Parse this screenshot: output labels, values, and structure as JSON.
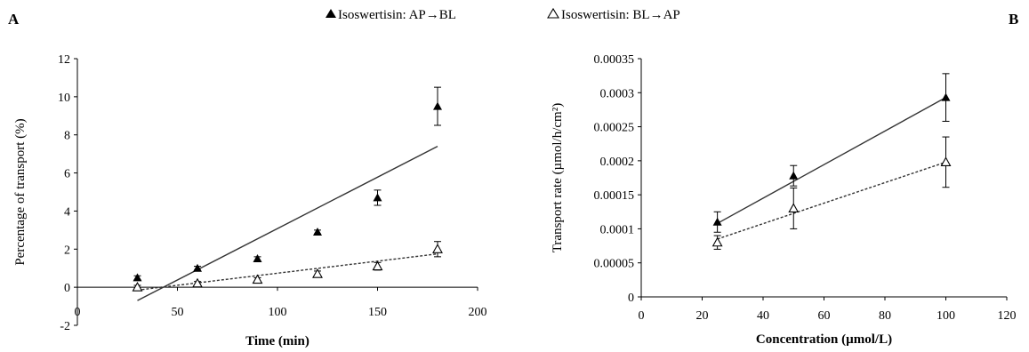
{
  "legend": {
    "series1_label": "Isoswertisin: AP→BL",
    "series2_label": "Isoswertisin: BL→AP"
  },
  "chart_data": [
    {
      "panel": "A",
      "type": "scatter",
      "xlabel": "Time  (min)",
      "ylabel": "Percentage of transport (%)",
      "xlim": [
        0,
        200
      ],
      "ylim": [
        -2,
        12
      ],
      "xticks": [
        "0",
        "50",
        "100",
        "150",
        "200"
      ],
      "yticks": [
        "-2",
        "0",
        "2",
        "4",
        "6",
        "8",
        "10",
        "12"
      ],
      "series": [
        {
          "name": "Isoswertisin: AP→BL",
          "marker": "filled-triangle",
          "x": [
            30,
            60,
            90,
            120,
            150,
            180
          ],
          "y": [
            0.5,
            1.0,
            1.5,
            2.9,
            4.7,
            9.5
          ],
          "err": [
            0.1,
            0.1,
            0.1,
            0.1,
            0.4,
            1.0
          ],
          "trendline": {
            "style": "solid",
            "x": [
              30,
              180
            ],
            "y": [
              -0.7,
              7.4
            ]
          }
        },
        {
          "name": "Isoswertisin: BL→AP",
          "marker": "open-triangle",
          "x": [
            30,
            60,
            90,
            120,
            150,
            180
          ],
          "y": [
            0.0,
            0.2,
            0.4,
            0.7,
            1.1,
            2.0
          ],
          "err": [
            0.1,
            0.1,
            0.1,
            0.15,
            0.2,
            0.4
          ],
          "trendline": {
            "style": "dashed",
            "x": [
              30,
              180
            ],
            "y": [
              -0.15,
              1.75
            ]
          }
        }
      ]
    },
    {
      "panel": "B",
      "type": "scatter",
      "xlabel": "Concentration (µmol/L)",
      "ylabel": "Transport rate (µmol/h/cm²)",
      "xlim": [
        0,
        120
      ],
      "ylim": [
        0,
        0.00035
      ],
      "xticks": [
        "0",
        "20",
        "40",
        "60",
        "80",
        "100",
        "120"
      ],
      "yticks": [
        "0",
        "0.00005",
        "0.0001",
        "0.00015",
        "0.0002",
        "0.00025",
        "0.0003",
        "0.00035"
      ],
      "series": [
        {
          "name": "Isoswertisin: AP→BL",
          "marker": "filled-triangle",
          "x": [
            25,
            50,
            100
          ],
          "y": [
            0.00011,
            0.000178,
            0.000293
          ],
          "err": [
            1.5e-05,
            1.5e-05,
            3.5e-05
          ],
          "trendline": {
            "style": "solid",
            "x": [
              25,
              100
            ],
            "y": [
              0.000108,
              0.000293
            ]
          }
        },
        {
          "name": "Isoswertisin: BL→AP",
          "marker": "open-triangle",
          "x": [
            25,
            50,
            100
          ],
          "y": [
            8e-05,
            0.00013,
            0.000198
          ],
          "err": [
            1e-05,
            3e-05,
            3.7e-05
          ],
          "trendline": {
            "style": "dashed",
            "x": [
              25,
              100
            ],
            "y": [
              8.5e-05,
              0.000198
            ]
          }
        }
      ]
    }
  ]
}
